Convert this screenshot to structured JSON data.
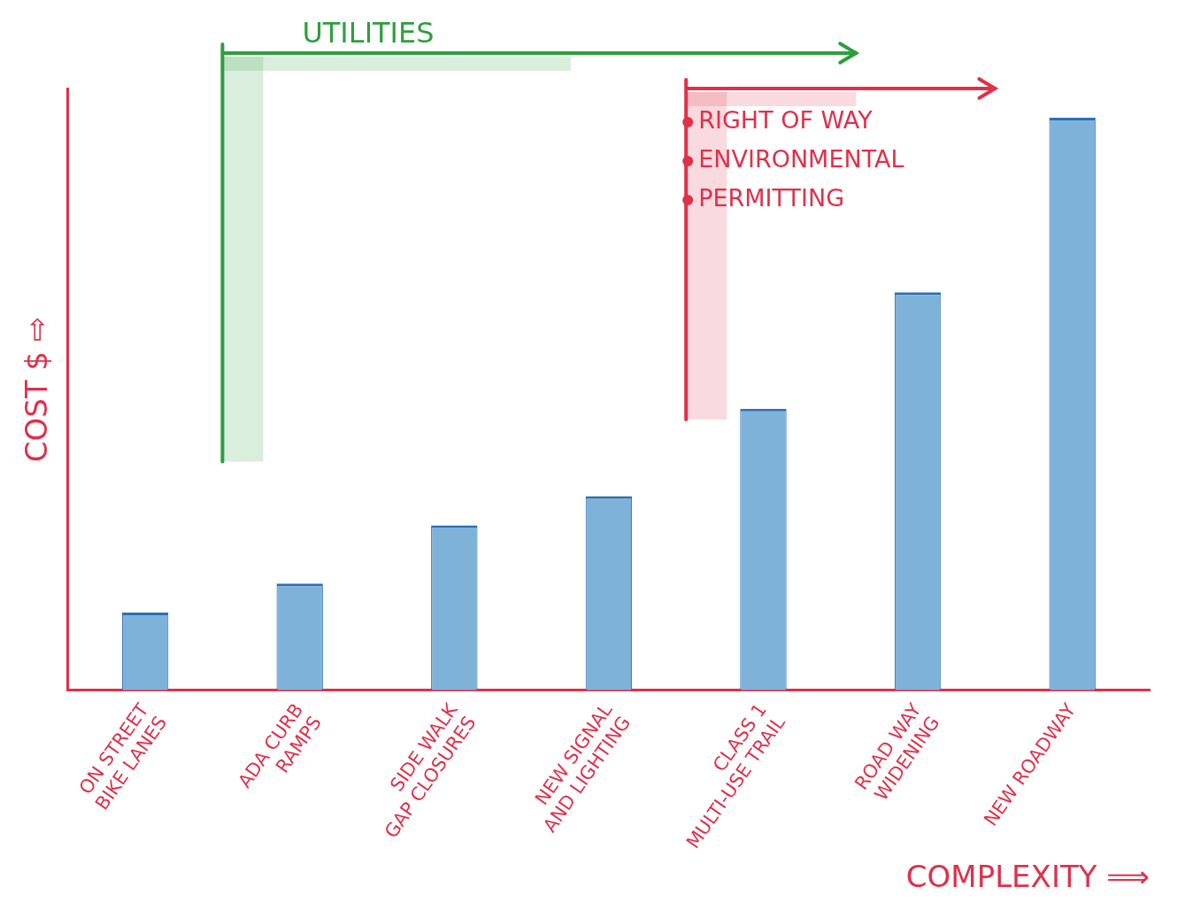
{
  "chart_data": {
    "type": "bar",
    "categories": [
      [
        "ON STREET",
        "BIKE LANES"
      ],
      [
        "ADA CURB",
        "RAMPS"
      ],
      [
        "SIDE WALK",
        "GAP CLOSURES"
      ],
      [
        "NEW SIGNAL",
        "AND LIGHTING"
      ],
      [
        "CLASS 1",
        "MULTI-USE TRAIL"
      ],
      [
        "ROAD WAY",
        "WIDENING"
      ],
      [
        "NEW ROADWAY"
      ]
    ],
    "values": [
      4,
      5.5,
      8.5,
      10,
      14.5,
      20.5,
      29.5
    ],
    "color": "#7fb2d9",
    "ylim": [
      0,
      31
    ],
    "yticks": [],
    "grid": false,
    "tick_labels": "x",
    "x_label": "COMPLEXITY ⟹",
    "y_label": "COST $ ⇨",
    "annotations": [
      {
        "text": "UTILITIES",
        "from": "ADA CURB RAMPS",
        "to": "CLASS 1 MULTI-USE TRAIL",
        "color": "#2e9e3e"
      },
      {
        "items": [
          "RIGHT OF WAY",
          "ENVIRONMENTAL",
          "PERMITTING"
        ],
        "from": "CLASS 1 MULTI-USE TRAIL",
        "to": "ROAD WAY WIDENING",
        "color": "#e0304a"
      }
    ]
  }
}
